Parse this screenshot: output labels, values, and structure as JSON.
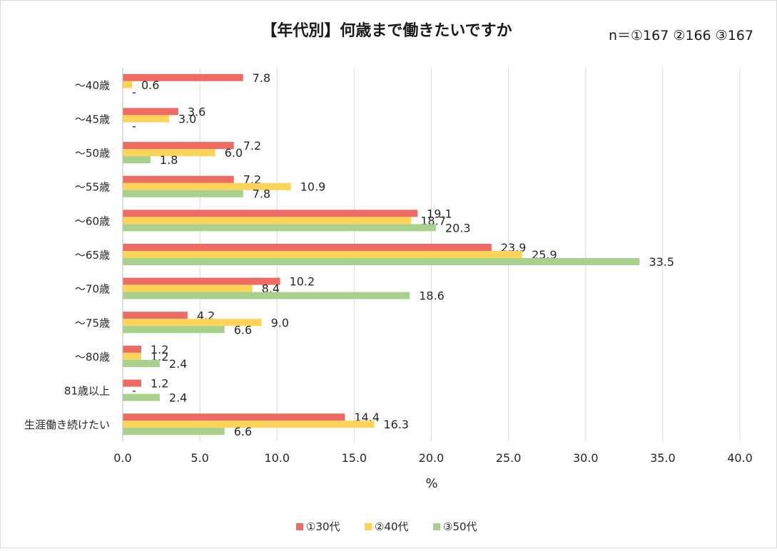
{
  "chart_data": {
    "type": "bar",
    "orientation": "horizontal",
    "title": "【年代別】何歳まで働きたいですか",
    "note": "n＝①167 ②166 ③167",
    "xlabel": "%",
    "ylabel": "",
    "xlim": [
      0,
      40
    ],
    "xticks": [
      "0.0",
      "5.0",
      "10.0",
      "15.0",
      "20.0",
      "25.0",
      "30.0",
      "35.0",
      "40.0"
    ],
    "grid": true,
    "legend_position": "bottom",
    "categories": [
      "～40歳",
      "～45歳",
      "～50歳",
      "～55歳",
      "～60歳",
      "～65歳",
      "～70歳",
      "～75歳",
      "～80歳",
      "81歳以上",
      "生涯働き続けたい"
    ],
    "series": [
      {
        "name": "①30代",
        "color": "#ed6b63",
        "values": [
          7.8,
          3.6,
          7.2,
          7.2,
          19.1,
          23.9,
          10.2,
          4.2,
          1.2,
          1.2,
          14.4
        ],
        "labels": [
          "7.8",
          "3.6",
          "7.2",
          "7.2",
          "19.1",
          "23.9",
          "10.2",
          "4.2",
          "1.2",
          "1.2",
          "14.4"
        ]
      },
      {
        "name": "②40代",
        "color": "#fdd358",
        "values": [
          0.6,
          3.0,
          6.0,
          10.9,
          18.7,
          25.9,
          8.4,
          9.0,
          1.2,
          0,
          16.3
        ],
        "labels": [
          "0.6",
          "3.0",
          "6.0",
          "10.9",
          "18.7",
          "25.9",
          "8.4",
          "9.0",
          "1.2",
          "-",
          "16.3"
        ]
      },
      {
        "name": "③50代",
        "color": "#a9d18e",
        "values": [
          0,
          0,
          1.8,
          7.8,
          20.3,
          33.5,
          18.6,
          6.6,
          2.4,
          2.4,
          6.6
        ],
        "labels": [
          "-",
          "-",
          "1.8",
          "7.8",
          "20.3",
          "33.5",
          "18.6",
          "6.6",
          "2.4",
          "2.4",
          "6.6"
        ]
      }
    ]
  }
}
